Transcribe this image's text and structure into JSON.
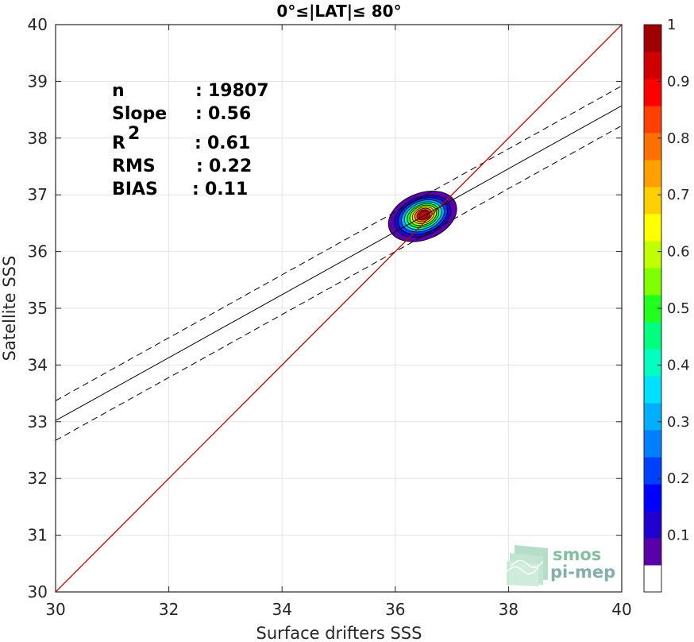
{
  "chart_data": {
    "type": "heatmap",
    "title": "0°≤|LAT|≤ 80°",
    "xlabel": "Surface drifters SSS",
    "ylabel": "Satellite SSS",
    "xlim": [
      30,
      40
    ],
    "ylim": [
      30,
      40
    ],
    "x_ticks": [
      "30",
      "32",
      "34",
      "36",
      "38",
      "40"
    ],
    "y_ticks": [
      "30",
      "31",
      "32",
      "33",
      "34",
      "35",
      "36",
      "37",
      "38",
      "39",
      "40"
    ],
    "grid": true,
    "stats": [
      {
        "label": "n",
        "sep": ":",
        "value": "19807"
      },
      {
        "label": "Slope",
        "sep": ":",
        "value": "0.56"
      },
      {
        "label": "R",
        "sup": "2",
        "sep": ":",
        "value": "0.61"
      },
      {
        "label": "RMS",
        "sep": ":",
        "value": "0.22"
      },
      {
        "label": "BIAS",
        "sep": ":",
        "value": "0.11"
      }
    ],
    "identity_line": {
      "x": [
        30,
        40
      ],
      "y": [
        30,
        40
      ],
      "color": "#c00000"
    },
    "regression": {
      "x": [
        30,
        40
      ],
      "y": [
        33.02,
        38.57
      ]
    },
    "regression_bounds": [
      {
        "x": [
          30,
          40
        ],
        "y": [
          33.37,
          38.92
        ]
      },
      {
        "x": [
          30,
          40
        ],
        "y": [
          32.67,
          38.22
        ]
      }
    ],
    "density_center": {
      "x": 36.5,
      "y": 36.65
    },
    "density_levels": [
      0.05,
      0.1,
      0.2,
      0.3,
      0.4,
      0.5,
      0.6,
      0.7,
      0.8,
      0.9,
      0.95
    ],
    "density_extent": [
      {
        "level": 0.05,
        "x": [
          35.8,
          37.2
        ],
        "y": [
          36.1,
          37.15
        ]
      },
      {
        "level": 0.95,
        "x": [
          36.42,
          36.58
        ],
        "y": [
          36.6,
          36.72
        ]
      }
    ],
    "colorbar": {
      "min": 0,
      "max": 1,
      "ticks": [
        "0.1",
        "0.2",
        "0.3",
        "0.4",
        "0.5",
        "0.6",
        "0.7",
        "0.8",
        "0.9",
        "1"
      ],
      "colors": [
        "#ffffff",
        "#5a00a8",
        "#2000d0",
        "#0000ff",
        "#0040ff",
        "#0080ff",
        "#00b0ff",
        "#00e0ff",
        "#00ffc0",
        "#00ff80",
        "#20ff20",
        "#80ff00",
        "#c0ff00",
        "#ffff00",
        "#ffd000",
        "#ffa000",
        "#ff7000",
        "#ff4000",
        "#ff0000",
        "#d00000",
        "#a00000"
      ]
    }
  },
  "watermark": {
    "line1": "smos",
    "line2": "pi-mep"
  }
}
